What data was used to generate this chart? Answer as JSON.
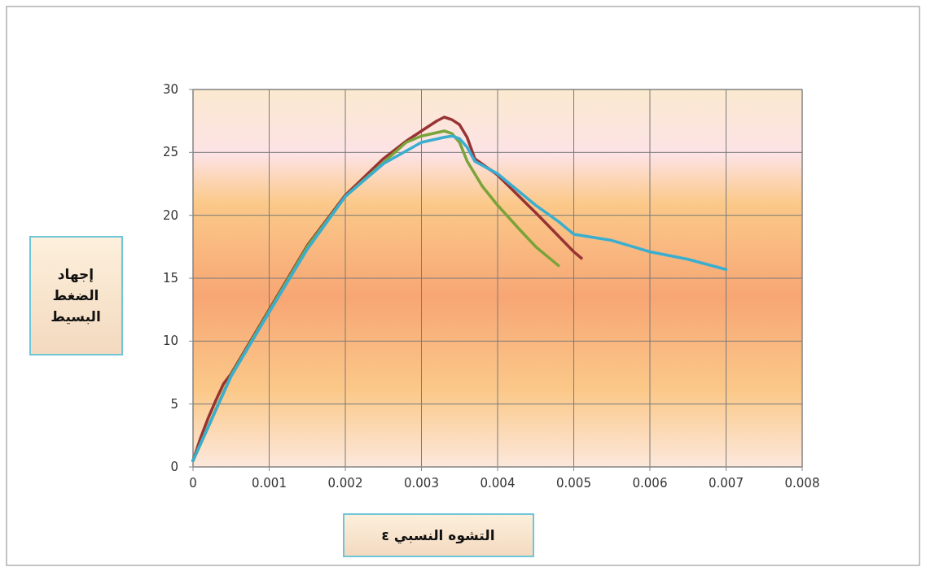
{
  "chart_data": {
    "type": "line",
    "xlabel": "التشوه النسبي ε",
    "ylabel": "إجهاد الضغط البسيط",
    "xlim": [
      0,
      0.008
    ],
    "ylim": [
      0,
      30
    ],
    "xticks": [
      0,
      0.001,
      0.002,
      0.003,
      0.004,
      0.005,
      0.006,
      0.007,
      0.008
    ],
    "yticks": [
      0,
      5,
      10,
      15,
      20,
      25,
      30
    ],
    "grid": true,
    "marker": "none",
    "line_style": "solid",
    "series": [
      {
        "color": "#993333",
        "x": [
          0,
          0.0001,
          0.0002,
          0.0003,
          0.0004,
          0.0005,
          0.001,
          0.0015,
          0.002,
          0.0025,
          0.0028,
          0.003,
          0.0032,
          0.0033,
          0.0034,
          0.0035,
          0.0036,
          0.0037,
          0.004,
          0.0045,
          0.005,
          0.0051
        ],
        "values": [
          0.5,
          2.3,
          3.9,
          5.3,
          6.6,
          7.4,
          12.5,
          17.6,
          21.6,
          24.5,
          25.9,
          26.7,
          27.5,
          27.8,
          27.6,
          27.2,
          26.2,
          24.5,
          23.2,
          20.2,
          17.1,
          16.6
        ]
      },
      {
        "color": "#7aa33a",
        "x": [
          0,
          0.0005,
          0.001,
          0.0015,
          0.002,
          0.0025,
          0.0028,
          0.003,
          0.0033,
          0.0034,
          0.0035,
          0.0036,
          0.0038,
          0.004,
          0.0043,
          0.0045,
          0.0048
        ],
        "values": [
          0.5,
          7.3,
          12.4,
          17.5,
          21.5,
          24.2,
          25.8,
          26.3,
          26.7,
          26.5,
          25.8,
          24.3,
          22.3,
          20.8,
          18.8,
          17.5,
          16
        ]
      },
      {
        "color": "#3aaed0",
        "x": [
          0,
          0.0005,
          0.001,
          0.0015,
          0.002,
          0.0025,
          0.003,
          0.0033,
          0.0034,
          0.0035,
          0.0036,
          0.0037,
          0.004,
          0.0045,
          0.0048,
          0.005,
          0.0055,
          0.006,
          0.0065,
          0.007
        ],
        "values": [
          0.5,
          7.2,
          12.3,
          17.3,
          21.5,
          24.1,
          25.8,
          26.2,
          26.3,
          26.1,
          25.4,
          24.3,
          23.3,
          20.8,
          19.5,
          18.5,
          18,
          17.1,
          16.5,
          15.7
        ]
      }
    ]
  }
}
